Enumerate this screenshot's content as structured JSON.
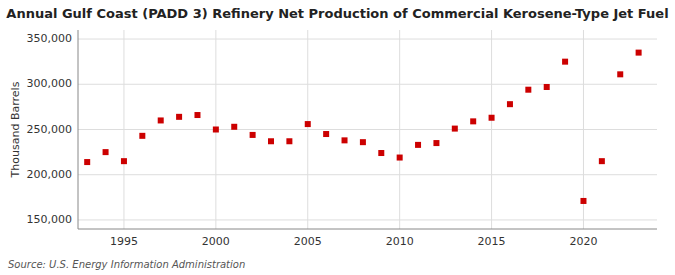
{
  "chart_data": {
    "type": "scatter",
    "title": "Annual Gulf Coast (PADD 3) Refinery Net Production of Commercial Kerosene-Type Jet Fuel",
    "ylabel": "Thousand Barrels",
    "source": "Source: U.S. Energy Information Administration",
    "x": [
      1993,
      1994,
      1995,
      1996,
      1997,
      1998,
      1999,
      2000,
      2001,
      2002,
      2003,
      2004,
      2005,
      2006,
      2007,
      2008,
      2009,
      2010,
      2011,
      2012,
      2013,
      2014,
      2015,
      2016,
      2017,
      2018,
      2019,
      2020,
      2021,
      2022,
      2023
    ],
    "values": [
      214000,
      225000,
      215000,
      243000,
      260000,
      264000,
      266000,
      250000,
      253000,
      244000,
      237000,
      237000,
      256000,
      245000,
      238000,
      236000,
      224000,
      219000,
      233000,
      235000,
      251000,
      259000,
      263000,
      278000,
      294000,
      297000,
      325000,
      171000,
      215000,
      311000,
      335000
    ],
    "color": "#cc0000",
    "marker": "square",
    "xlim": [
      1992.5,
      2024
    ],
    "xticks": [
      1995,
      2000,
      2005,
      2010,
      2015,
      2020
    ],
    "ylim": [
      140000,
      360000
    ],
    "yticks": [
      {
        "value": 150000,
        "label": "150,000"
      },
      {
        "value": 200000,
        "label": "200,000"
      },
      {
        "value": 250000,
        "label": "250,000"
      },
      {
        "value": 300000,
        "label": "300,000"
      },
      {
        "value": 350000,
        "label": "350,000"
      }
    ],
    "grid": true
  }
}
